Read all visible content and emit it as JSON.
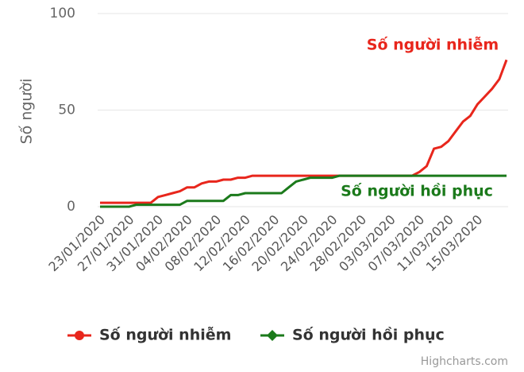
{
  "chart_data": {
    "type": "line",
    "y_label": "Số người",
    "categories": [
      "23/01/2020",
      null,
      null,
      null,
      "27/01/2020",
      null,
      null,
      null,
      "31/01/2020",
      null,
      null,
      null,
      "04/02/2020",
      null,
      null,
      null,
      "08/02/2020",
      null,
      null,
      null,
      "12/02/2020",
      null,
      null,
      null,
      "16/02/2020",
      null,
      null,
      null,
      "20/02/2020",
      null,
      null,
      null,
      "24/02/2020",
      null,
      null,
      null,
      "28/02/2020",
      null,
      null,
      null,
      "03/03/2020",
      null,
      null,
      null,
      "07/03/2020",
      null,
      null,
      null,
      "11/03/2020",
      null,
      null,
      null,
      "15/03/2020",
      null,
      null,
      null,
      null
    ],
    "series": [
      {
        "name": "Số người nhiễm",
        "color": "#e8261c",
        "values": [
          2,
          2,
          2,
          2,
          2,
          2,
          2,
          2,
          5,
          6,
          7,
          8,
          10,
          10,
          12,
          13,
          13,
          14,
          14,
          15,
          15,
          16,
          16,
          16,
          16,
          16,
          16,
          16,
          16,
          16,
          16,
          16,
          16,
          16,
          16,
          16,
          16,
          16,
          16,
          16,
          16,
          16,
          16,
          16,
          18,
          21,
          30,
          31,
          34,
          39,
          44,
          47,
          53,
          57,
          61,
          66,
          76
        ]
      },
      {
        "name": "Số người hồi phục",
        "color": "#1b7a1b",
        "values": [
          0,
          0,
          0,
          0,
          0,
          1,
          1,
          1,
          1,
          1,
          1,
          1,
          3,
          3,
          3,
          3,
          3,
          3,
          6,
          6,
          7,
          7,
          7,
          7,
          7,
          7,
          10,
          13,
          14,
          15,
          15,
          15,
          15,
          16,
          16,
          16,
          16,
          16,
          16,
          16,
          16,
          16,
          16,
          16,
          16,
          16,
          16,
          16,
          16,
          16,
          16,
          16,
          16,
          16,
          16,
          16,
          16
        ]
      }
    ],
    "ylim": [
      0,
      100
    ],
    "yticks": [
      0,
      50,
      100
    ],
    "grid": true,
    "credits": "Highcharts.com"
  }
}
